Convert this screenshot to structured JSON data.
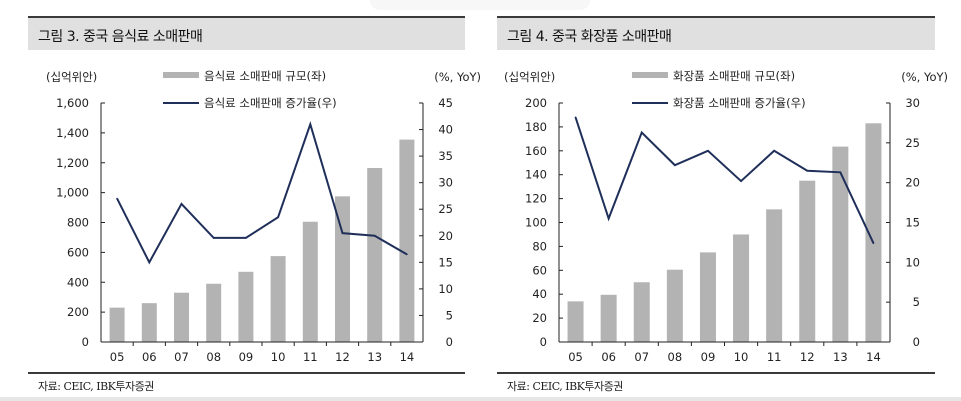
{
  "charts": [
    {
      "title": "그림 3. 중국 음식료 소매판매",
      "source": "자료: CEIC, IBK투자증권",
      "chart_data": {
        "type": "bar+line",
        "categories": [
          "05",
          "06",
          "07",
          "08",
          "09",
          "10",
          "11",
          "12",
          "13",
          "14"
        ],
        "left_unit": "(십억위안)",
        "right_unit": "(%, YoY)",
        "left_ylim": [
          0,
          1600
        ],
        "left_ticks": [
          "0",
          "200",
          "400",
          "600",
          "800",
          "1,000",
          "1,200",
          "1,400",
          "1,600"
        ],
        "right_ylim": [
          0,
          45
        ],
        "right_ticks": [
          "0",
          "5",
          "10",
          "15",
          "20",
          "25",
          "30",
          "35",
          "40",
          "45"
        ],
        "legend_placement": "top-center",
        "grid": false,
        "series": [
          {
            "name": "음식료 소매판매 규모(좌)",
            "type": "bar",
            "axis": "left",
            "color": "#b3b3b3",
            "values": [
              230,
              260,
              330,
              390,
              470,
              575,
              805,
              975,
              1165,
              1355
            ]
          },
          {
            "name": "음식료 소매판매 증가율(우)",
            "type": "line",
            "axis": "right",
            "color": "#1f2f5a",
            "values": [
              27.0,
              15.0,
              26.0,
              19.6,
              19.6,
              23.5,
              41.0,
              20.5,
              20.0,
              16.5
            ]
          }
        ]
      }
    },
    {
      "title": "그림 4. 중국 화장품 소매판매",
      "source": "자료: CEIC, IBK투자증권",
      "chart_data": {
        "type": "bar+line",
        "categories": [
          "05",
          "06",
          "07",
          "08",
          "09",
          "10",
          "11",
          "12",
          "13",
          "14"
        ],
        "left_unit": "(십억위안)",
        "right_unit": "(%, YoY)",
        "left_ylim": [
          0,
          200
        ],
        "left_ticks": [
          "0",
          "20",
          "40",
          "60",
          "80",
          "100",
          "120",
          "140",
          "160",
          "180",
          "200"
        ],
        "right_ylim": [
          0,
          30
        ],
        "right_ticks": [
          "0",
          "5",
          "10",
          "15",
          "20",
          "25",
          "30"
        ],
        "legend_placement": "top-center",
        "grid": false,
        "series": [
          {
            "name": "화장품 소매판매 규모(좌)",
            "type": "bar",
            "axis": "left",
            "color": "#b3b3b3",
            "values": [
              34,
              39.5,
              50,
              60.5,
              75,
              90,
              111,
              135,
              163.5,
              183
            ]
          },
          {
            "name": "화장품 소매판매 증가율(우)",
            "type": "line",
            "axis": "right",
            "color": "#1f2f5a",
            "values": [
              28.2,
              15.5,
              26.3,
              22.2,
              24.0,
              20.2,
              24.0,
              21.5,
              21.3,
              12.4
            ]
          }
        ]
      }
    }
  ]
}
